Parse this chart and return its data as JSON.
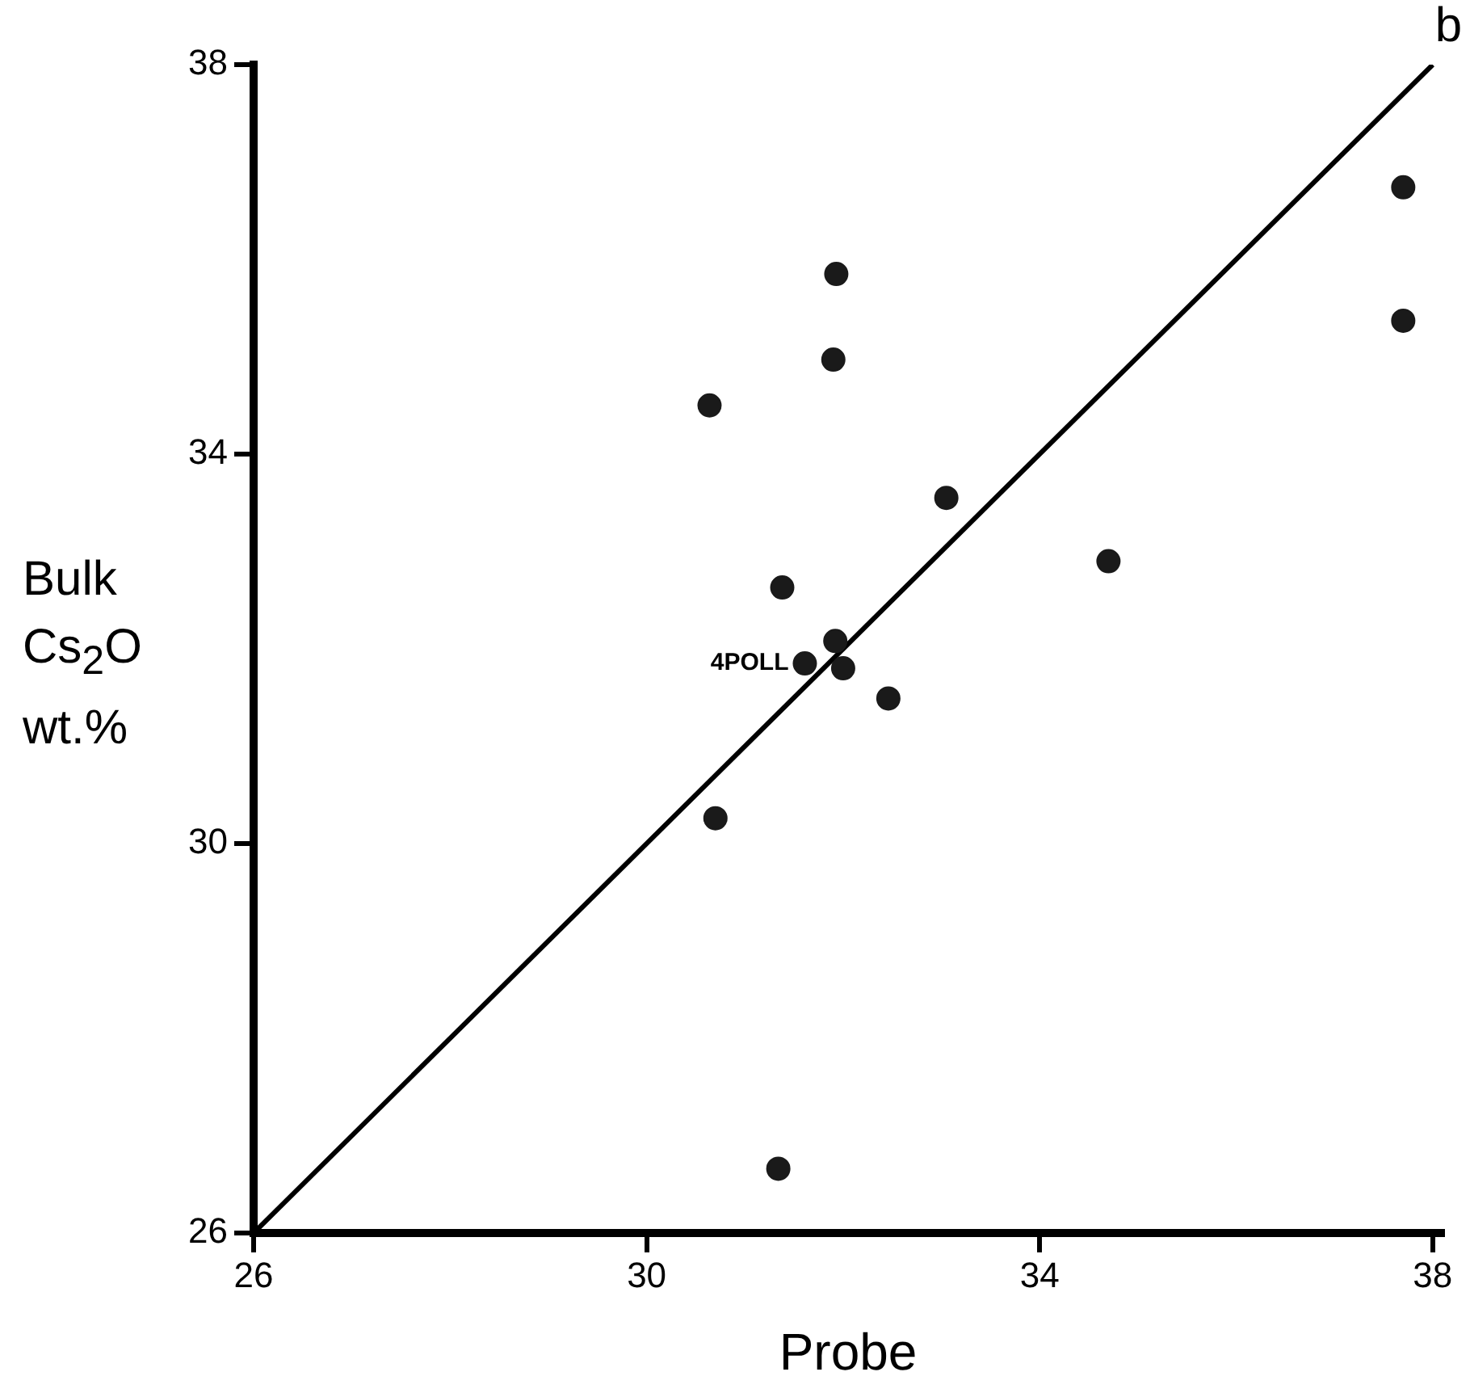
{
  "chart_data": {
    "type": "scatter",
    "xlabel": "Probe",
    "ylabel": "Bulk Cs$_{2}$O wt.%",
    "xlim": [
      26,
      38.1
    ],
    "ylim": [
      26,
      38
    ],
    "xticks": [
      26,
      30,
      34,
      38
    ],
    "yticks": [
      26,
      30,
      34,
      38
    ],
    "grid": false,
    "legend": false,
    "marker": "circle",
    "series": [
      {
        "color": "#1a1a1a",
        "x": [
          30.64,
          31.93,
          31.9,
          33.05,
          34.7,
          31.38,
          31.92,
          31.61,
          32.0,
          32.46,
          30.7,
          31.34,
          37.7,
          37.7
        ],
        "values": [
          34.5,
          35.85,
          34.97,
          33.55,
          32.9,
          32.63,
          32.08,
          31.85,
          31.8,
          31.49,
          30.26,
          26.66,
          36.74,
          35.37
        ]
      },
      {
        "type": "line",
        "color": "#000000",
        "marker": "none",
        "x": [
          26,
          38
        ],
        "values": [
          26,
          38
        ]
      }
    ],
    "annotations": [
      "b",
      {
        "text": "4POLL",
        "x": 31.61,
        "y": 31.85
      }
    ]
  }
}
